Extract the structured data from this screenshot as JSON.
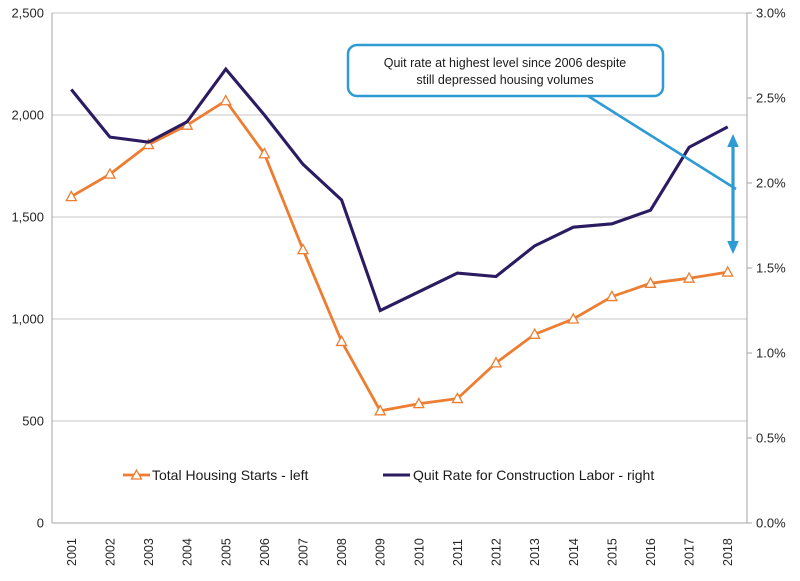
{
  "chart_data": {
    "type": "line",
    "title": "",
    "categories": [
      "2001",
      "2002",
      "2003",
      "2004",
      "2005",
      "2006",
      "2007",
      "2008",
      "2009",
      "2010",
      "2011",
      "2012",
      "2013",
      "2014",
      "2015",
      "2016",
      "2017",
      "2018"
    ],
    "series": [
      {
        "name": "Total Housing Starts - left",
        "axis": "left",
        "color": "#ED7D31",
        "marker": "triangle",
        "values": [
          1600,
          1710,
          1855,
          1950,
          2070,
          1810,
          1340,
          890,
          550,
          585,
          610,
          785,
          925,
          1000,
          1110,
          1175,
          1200,
          1230
        ]
      },
      {
        "name": "Quit Rate for Construction Labor - right",
        "axis": "right",
        "color": "#2B1B61",
        "marker": "none",
        "values": [
          2.55,
          2.27,
          2.24,
          2.36,
          2.67,
          2.4,
          2.11,
          1.9,
          1.25,
          1.36,
          1.47,
          1.45,
          1.63,
          1.74,
          1.76,
          1.84,
          2.21,
          2.33
        ]
      }
    ],
    "left_axis": {
      "min": 0,
      "max": 2500,
      "step": 500,
      "tick_labels": [
        "0",
        "500",
        "1,000",
        "1,500",
        "2,000",
        "2,500"
      ]
    },
    "right_axis": {
      "min": 0,
      "max": 3.0,
      "step": 0.5,
      "tick_labels": [
        "0.0%",
        "0.5%",
        "1.0%",
        "1.5%",
        "2.0%",
        "2.5%",
        "3.0%"
      ]
    },
    "grid": true,
    "legend_position": "bottom-inside",
    "annotation": {
      "line1": "Quit rate at highest level since 2006 despite",
      "line2": "still depressed housing volumes"
    }
  },
  "legend": {
    "housing_label": "Total Housing Starts - left",
    "quit_label": "Quit Rate for Construction Labor - right"
  },
  "colors": {
    "housing_line": "#ED7D31",
    "quit_line": "#2B1B61",
    "callout_blue": "#2E9BD5",
    "gridline": "#C6C6C6",
    "axis_line": "#A6A6A6",
    "text": "#262626",
    "marker_fill": "#FFFFFF"
  }
}
